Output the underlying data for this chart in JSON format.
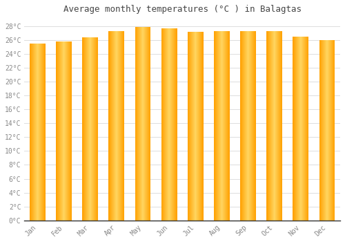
{
  "title": "Average monthly temperatures (°C ) in Balagtas",
  "months": [
    "Jan",
    "Feb",
    "Mar",
    "Apr",
    "May",
    "Jun",
    "Jul",
    "Aug",
    "Sep",
    "Oct",
    "Nov",
    "Dec"
  ],
  "values": [
    25.5,
    25.8,
    26.4,
    27.3,
    27.9,
    27.7,
    27.2,
    27.3,
    27.3,
    27.3,
    26.5,
    26.0
  ],
  "ylim": [
    0,
    29
  ],
  "yticks": [
    0,
    2,
    4,
    6,
    8,
    10,
    12,
    14,
    16,
    18,
    20,
    22,
    24,
    26,
    28
  ],
  "bar_color_left": "#FFB300",
  "bar_color_center": "#FFD060",
  "bar_color_right": "#FFA500",
  "background_color": "#FFFFFF",
  "plot_bg_color": "#FFFFFF",
  "grid_color": "#DDDDDD",
  "title_fontsize": 9,
  "tick_fontsize": 7,
  "tick_color": "#888888",
  "title_color": "#444444",
  "bar_width": 0.6,
  "n_bars": 12
}
